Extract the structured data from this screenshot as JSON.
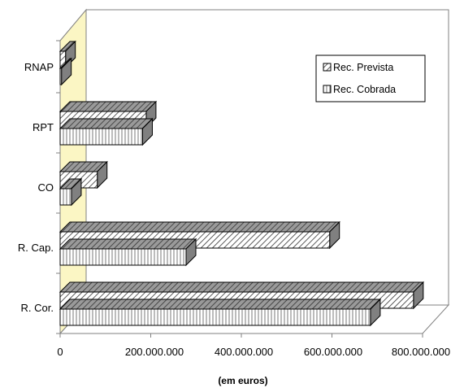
{
  "chart_data": {
    "type": "bar",
    "orientation": "horizontal",
    "style": "3d",
    "categories": [
      "R. Cor.",
      "R. Cap.",
      "CO",
      "RPT",
      "RNAP"
    ],
    "series": [
      {
        "name": "Rec. Prevista",
        "pattern": "diagonal-hatch",
        "values": [
          780000000,
          595000000,
          82000000,
          190000000,
          12000000
        ]
      },
      {
        "name": "Rec. Cobrada",
        "pattern": "vertical-stripes",
        "values": [
          685000000,
          278000000,
          25000000,
          182000000,
          3000000
        ]
      }
    ],
    "xlim": [
      0,
      800000000
    ],
    "xticks": [
      0,
      200000000,
      400000000,
      600000000,
      800000000
    ],
    "xtick_labels": [
      "0",
      "200.000.000",
      "400.000.000",
      "600.000.000",
      "800.000.000"
    ],
    "xlabel": "(em euros)",
    "ylabel": "",
    "title": "",
    "legend_position": "top-right",
    "grid": false,
    "colors": {
      "left_wall": "#fbf6c4",
      "bar_side": "#808080",
      "bar_fill": "#ffffff",
      "axis": "#808080"
    }
  }
}
